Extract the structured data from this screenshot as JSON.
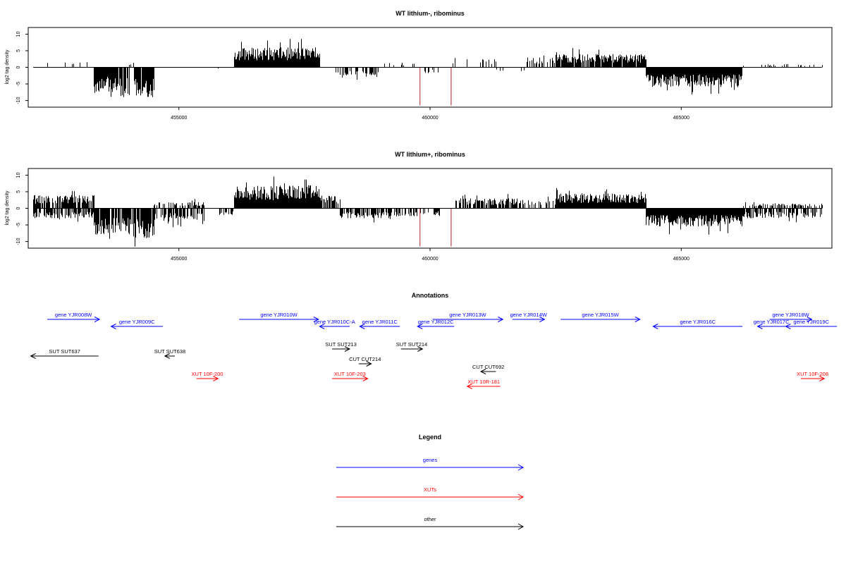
{
  "chart_data": [
    {
      "type": "bar",
      "title": "WT lithium-, ribominus",
      "ylabel": "log2 tag density",
      "xlim": [
        452000,
        468000
      ],
      "ylim": [
        -12,
        12
      ],
      "x_ticks": [
        "455000",
        "460000",
        "465000"
      ],
      "y_ticks": [
        "10",
        "5",
        "0",
        "-5",
        "-10"
      ],
      "marker_color": "#b22222",
      "markers_x": [
        459800,
        460420
      ],
      "segments": [
        {
          "start": 452100,
          "end": 453300,
          "sign": 1,
          "amp": 2.0,
          "density": 0.15
        },
        {
          "start": 453300,
          "end": 453600,
          "sign": -1,
          "amp": 8.0,
          "density": 0.9
        },
        {
          "start": 453600,
          "end": 454000,
          "sign": -1,
          "amp": 9.0,
          "density": 0.9
        },
        {
          "start": 454000,
          "end": 454100,
          "sign": 1,
          "amp": 1.5,
          "density": 0.3
        },
        {
          "start": 454100,
          "end": 454500,
          "sign": -1,
          "amp": 9.0,
          "density": 0.95
        },
        {
          "start": 455700,
          "end": 455800,
          "sign": -1,
          "amp": 1.0,
          "density": 0.2
        },
        {
          "start": 456100,
          "end": 457800,
          "sign": 1,
          "amp": 6.0,
          "density": 1.0
        },
        {
          "start": 458100,
          "end": 459000,
          "sign": -1,
          "amp": 3.0,
          "density": 0.4
        },
        {
          "start": 459000,
          "end": 459700,
          "sign": 1,
          "amp": 1.5,
          "density": 0.1
        },
        {
          "start": 459700,
          "end": 460200,
          "sign": -1,
          "amp": 2.0,
          "density": 0.2
        },
        {
          "start": 460400,
          "end": 461300,
          "sign": 1,
          "amp": 2.5,
          "density": 0.2
        },
        {
          "start": 461300,
          "end": 461900,
          "sign": -1,
          "amp": 1.5,
          "density": 0.1
        },
        {
          "start": 461900,
          "end": 462500,
          "sign": 1,
          "amp": 3.0,
          "density": 0.4
        },
        {
          "start": 462500,
          "end": 464300,
          "sign": 1,
          "amp": 4.0,
          "density": 0.9
        },
        {
          "start": 464300,
          "end": 466200,
          "sign": -1,
          "amp": 6.0,
          "density": 1.0
        },
        {
          "start": 466200,
          "end": 467800,
          "sign": 1,
          "amp": 1.0,
          "density": 0.12
        }
      ]
    },
    {
      "type": "bar",
      "title": "WT lithium+, ribominus",
      "ylabel": "log2 tag density",
      "xlim": [
        452000,
        468000
      ],
      "ylim": [
        -12,
        12
      ],
      "x_ticks": [
        "455000",
        "460000",
        "465000"
      ],
      "y_ticks": [
        "10",
        "5",
        "0",
        "-5",
        "-10"
      ],
      "marker_color": "#b22222",
      "markers_x": [
        459800,
        460420
      ],
      "segments": [
        {
          "start": 452100,
          "end": 453300,
          "sign": 1,
          "amp": 4.0,
          "density": 0.8
        },
        {
          "start": 452100,
          "end": 453300,
          "sign": -1,
          "amp": 3.0,
          "density": 0.7
        },
        {
          "start": 453300,
          "end": 454000,
          "sign": -1,
          "amp": 8.0,
          "density": 0.9
        },
        {
          "start": 454000,
          "end": 454500,
          "sign": -1,
          "amp": 9.0,
          "density": 0.9
        },
        {
          "start": 454500,
          "end": 455500,
          "sign": -1,
          "amp": 4.0,
          "density": 0.6
        },
        {
          "start": 454500,
          "end": 455500,
          "sign": 1,
          "amp": 2.0,
          "density": 0.4
        },
        {
          "start": 455800,
          "end": 456100,
          "sign": -1,
          "amp": 2.0,
          "density": 0.3
        },
        {
          "start": 456100,
          "end": 457800,
          "sign": 1,
          "amp": 7.0,
          "density": 1.0
        },
        {
          "start": 457800,
          "end": 458200,
          "sign": 1,
          "amp": 4.0,
          "density": 0.8
        },
        {
          "start": 458200,
          "end": 459200,
          "sign": -1,
          "amp": 3.0,
          "density": 0.7
        },
        {
          "start": 459200,
          "end": 460200,
          "sign": -1,
          "amp": 2.5,
          "density": 0.4
        },
        {
          "start": 460500,
          "end": 461800,
          "sign": 1,
          "amp": 3.0,
          "density": 0.7
        },
        {
          "start": 461800,
          "end": 462500,
          "sign": 1,
          "amp": 2.5,
          "density": 0.4
        },
        {
          "start": 462500,
          "end": 464300,
          "sign": 1,
          "amp": 4.5,
          "density": 1.0
        },
        {
          "start": 464300,
          "end": 466200,
          "sign": -1,
          "amp": 5.5,
          "density": 1.0
        },
        {
          "start": 466200,
          "end": 467800,
          "sign": -1,
          "amp": 3.0,
          "density": 0.6
        },
        {
          "start": 466200,
          "end": 467800,
          "sign": 1,
          "amp": 1.5,
          "density": 0.4
        }
      ]
    }
  ],
  "annotations": {
    "title": "Annotations",
    "colors": {
      "genes": "#0000ff",
      "XUTs": "#ff0000",
      "other": "#000000"
    },
    "features": [
      {
        "label": "gene YJR008W",
        "color": "#0000ff",
        "row": 0,
        "start": 452380,
        "end": 453420,
        "dir": "right"
      },
      {
        "label": "gene YJR009C",
        "color": "#0000ff",
        "row": 1,
        "start": 453650,
        "end": 454680,
        "dir": "left"
      },
      {
        "label": "gene YJR010W",
        "color": "#0000ff",
        "row": 0,
        "start": 456200,
        "end": 457780,
        "dir": "right"
      },
      {
        "label": "gene YJR010C-A",
        "color": "#0000ff",
        "row": 1,
        "start": 457800,
        "end": 458400,
        "dir": "left"
      },
      {
        "label": "gene YJR011C",
        "color": "#0000ff",
        "row": 1,
        "start": 458600,
        "end": 459400,
        "dir": "left"
      },
      {
        "label": "gene YJR012C",
        "color": "#0000ff",
        "row": 1,
        "start": 459750,
        "end": 460480,
        "dir": "left"
      },
      {
        "label": "gene YJR013W",
        "color": "#0000ff",
        "row": 0,
        "start": 460050,
        "end": 461450,
        "dir": "right"
      },
      {
        "label": "gene YJR014W",
        "color": "#0000ff",
        "row": 0,
        "start": 461640,
        "end": 462280,
        "dir": "right"
      },
      {
        "label": "gene YJR015W",
        "color": "#0000ff",
        "row": 0,
        "start": 462600,
        "end": 464180,
        "dir": "right"
      },
      {
        "label": "gene YJR016C",
        "color": "#0000ff",
        "row": 1,
        "start": 464440,
        "end": 466220,
        "dir": "left"
      },
      {
        "label": "gene YJR017C",
        "color": "#0000ff",
        "row": 1,
        "start": 466520,
        "end": 467070,
        "dir": "left"
      },
      {
        "label": "gene YJR018W",
        "color": "#0000ff",
        "row": 0,
        "start": 466760,
        "end": 467600,
        "dir": "right"
      },
      {
        "label": "gene YJR019C",
        "color": "#0000ff",
        "row": 1,
        "start": 467080,
        "end": 468100,
        "dir": "left"
      },
      {
        "label": "SUT SUT637",
        "color": "#000000",
        "row": 2,
        "start": 452050,
        "end": 453400,
        "dir": "left"
      },
      {
        "label": "SUT SUT638",
        "color": "#000000",
        "row": 2,
        "start": 454720,
        "end": 454920,
        "dir": "left"
      },
      {
        "label": "SUT SUT213",
        "color": "#000000",
        "row": 3,
        "start": 458050,
        "end": 458400,
        "dir": "right"
      },
      {
        "label": "SUT SUT214",
        "color": "#000000",
        "row": 3,
        "start": 459420,
        "end": 459850,
        "dir": "right"
      },
      {
        "label": "CUT CUT214",
        "color": "#000000",
        "row": 4,
        "start": 458580,
        "end": 458830,
        "dir": "right"
      },
      {
        "label": "CUT CUT692",
        "color": "#000000",
        "row": 5,
        "start": 461010,
        "end": 461310,
        "dir": "left"
      },
      {
        "label": "XUT 10F-200",
        "color": "#ff0000",
        "row": 6,
        "start": 455350,
        "end": 455780,
        "dir": "right"
      },
      {
        "label": "XUT 10F-203",
        "color": "#ff0000",
        "row": 6,
        "start": 458050,
        "end": 458760,
        "dir": "right"
      },
      {
        "label": "XUT 10R-181",
        "color": "#ff0000",
        "row": 7,
        "start": 460740,
        "end": 461400,
        "dir": "left"
      },
      {
        "label": "XUT 10F-208",
        "color": "#ff0000",
        "row": 6,
        "start": 467380,
        "end": 467850,
        "dir": "right"
      }
    ]
  },
  "legend": {
    "title": "Legend",
    "items": [
      {
        "label": "genes",
        "color": "#0000ff"
      },
      {
        "label": "XUTs",
        "color": "#ff0000"
      },
      {
        "label": "other",
        "color": "#000000"
      }
    ]
  }
}
